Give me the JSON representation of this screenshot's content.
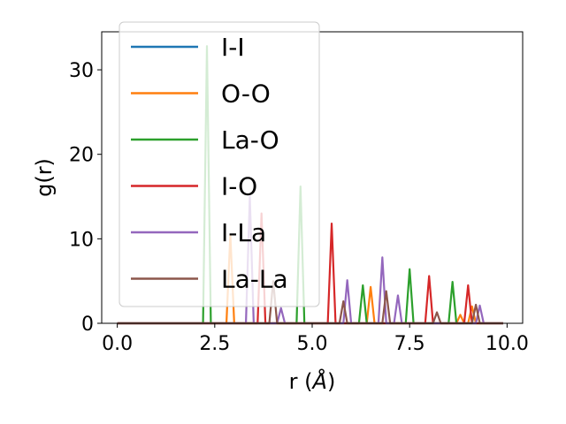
{
  "chart_data": {
    "type": "line",
    "xlabel": "r (Å)",
    "ylabel": "g(r)",
    "xlim": [
      -0.4,
      10.4
    ],
    "ylim": [
      0,
      34.5
    ],
    "xticks": [
      0.0,
      2.5,
      5.0,
      7.5,
      10.0
    ],
    "xtick_labels": [
      "0.0",
      "2.5",
      "5.0",
      "7.5",
      "10.0"
    ],
    "yticks": [
      0,
      10,
      20,
      30
    ],
    "ytick_labels": [
      "0",
      "10",
      "20",
      "30"
    ],
    "grid": false,
    "legend_position": "upper-left",
    "series": [
      {
        "name": "I-I",
        "color": "#1f77b4",
        "peaks": []
      },
      {
        "name": "O-O",
        "color": "#ff7f0e",
        "peaks": [
          [
            2.9,
            10.5
          ],
          [
            6.5,
            4.3
          ],
          [
            8.8,
            1.0
          ],
          [
            9.1,
            2.0
          ]
        ]
      },
      {
        "name": "La-O",
        "color": "#2ca02c",
        "peaks": [
          [
            2.3,
            32.8
          ],
          [
            4.7,
            16.2
          ],
          [
            6.3,
            4.5
          ],
          [
            7.5,
            6.4
          ],
          [
            8.6,
            4.9
          ]
        ]
      },
      {
        "name": "I-O",
        "color": "#d62728",
        "peaks": [
          [
            3.7,
            13.0
          ],
          [
            5.5,
            11.8
          ],
          [
            8.0,
            5.6
          ],
          [
            9.0,
            4.5
          ]
        ]
      },
      {
        "name": "I-La",
        "color": "#9467bd",
        "peaks": [
          [
            3.4,
            15.0
          ],
          [
            4.2,
            1.8
          ],
          [
            5.9,
            5.1
          ],
          [
            6.8,
            7.8
          ],
          [
            7.2,
            3.3
          ],
          [
            9.3,
            2.1
          ]
        ]
      },
      {
        "name": "La-La",
        "color": "#8c564b",
        "peaks": [
          [
            4.0,
            5.0
          ],
          [
            5.8,
            2.6
          ],
          [
            6.9,
            3.8
          ],
          [
            8.2,
            1.3
          ],
          [
            9.2,
            2.2
          ]
        ]
      }
    ],
    "x_range": [
      0.0,
      9.9
    ],
    "step": 0.1
  }
}
